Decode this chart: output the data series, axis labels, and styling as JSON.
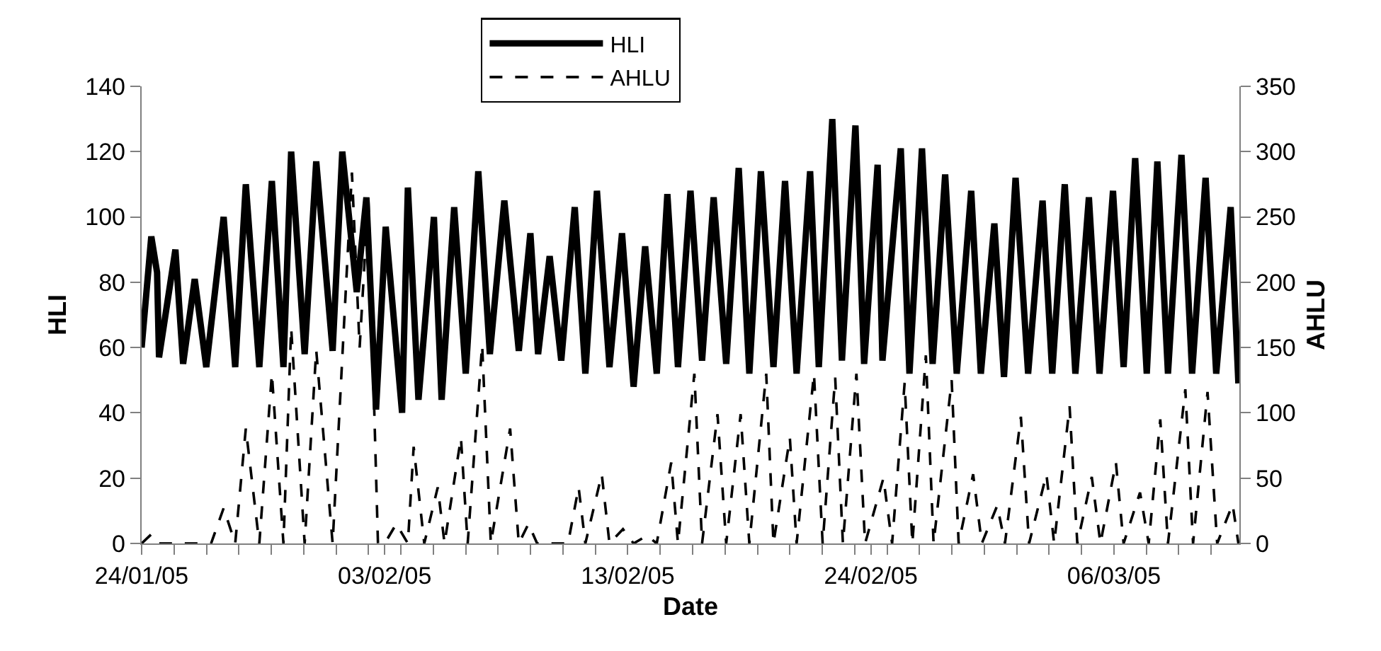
{
  "chart_data": {
    "type": "line",
    "xlabel": "Date",
    "ylabel": "HLI",
    "y2label": "AHLU",
    "legend": "top",
    "marker": "none",
    "xlim": [
      "--01-24T00:00",
      "--03-12T10:00"
    ],
    "xticks": [
      {
        "value": "--01-24T00:00",
        "label": "24/01/05"
      },
      {
        "value": "--01-25T09:36",
        "label": null
      },
      {
        "value": "--01-26T19:12",
        "label": null
      },
      {
        "value": "--01-28T04:48",
        "label": null
      },
      {
        "value": "--01-29T14:24",
        "label": null
      },
      {
        "value": "--01-31T00:00",
        "label": null
      },
      {
        "value": "--02-01T09:36",
        "label": null
      },
      {
        "value": "--02-02T19:12",
        "label": null
      },
      {
        "value": "--02-03T12:00",
        "label": "03/02/05"
      },
      {
        "value": "--02-04T04:48",
        "label": null
      },
      {
        "value": "--02-05T14:24",
        "label": null
      },
      {
        "value": "--02-07T00:00",
        "label": null
      },
      {
        "value": "--02-08T09:36",
        "label": null
      },
      {
        "value": "--02-09T19:12",
        "label": null
      },
      {
        "value": "--02-11T04:48",
        "label": null
      },
      {
        "value": "--02-12T14:24",
        "label": null
      },
      {
        "value": "--02-14T00:00",
        "label": "13/02/05"
      },
      {
        "value": "--02-15T09:36",
        "label": null
      },
      {
        "value": "--02-16T19:12",
        "label": null
      },
      {
        "value": "--02-18T04:48",
        "label": null
      },
      {
        "value": "--02-19T14:24",
        "label": null
      },
      {
        "value": "--02-21T00:00",
        "label": null
      },
      {
        "value": "--02-22T09:36",
        "label": null
      },
      {
        "value": "--02-23T19:12",
        "label": null
      },
      {
        "value": "--02-24T12:00",
        "label": "24/02/05"
      },
      {
        "value": "--02-25T04:48",
        "label": null
      },
      {
        "value": "--02-26T14:24",
        "label": null
      },
      {
        "value": "--02-28T00:00",
        "label": null
      },
      {
        "value": "--03-01T09:36",
        "label": null
      },
      {
        "value": "--03-02T19:12",
        "label": null
      },
      {
        "value": "--03-04T04:48",
        "label": null
      },
      {
        "value": "--03-05T14:24",
        "label": null
      },
      {
        "value": "--03-07T00:00",
        "label": "06/03/05"
      },
      {
        "value": "--03-08T09:36",
        "label": null
      },
      {
        "value": "--03-09T19:12",
        "label": null
      },
      {
        "value": "--03-11T04:48",
        "label": null
      }
    ],
    "ylim": [
      0,
      140
    ],
    "yticks": [
      0,
      20,
      40,
      60,
      80,
      100,
      120,
      140
    ],
    "y2lim": [
      0,
      350
    ],
    "y2ticks": [
      0,
      50,
      100,
      150,
      200,
      250,
      300,
      350
    ],
    "series": [
      {
        "name": "HLI",
        "color": "#000000",
        "line_style": "solid",
        "x": [
          "--01-24T00:00",
          "--01-24T10:00",
          "--01-24T16:00",
          "--01-24T18:00",
          "--01-25T11:00",
          "--01-25T19:00",
          "--01-26T07:00",
          "--01-26T19:00",
          "--01-27T13:00",
          "--01-28T01:00",
          "--01-28T12:00",
          "--01-29T02:00",
          "--01-29T15:00",
          "--01-30T03:00",
          "--01-30T11:00",
          "--01-31T01:00",
          "--01-31T13:00",
          "--02-01T06:00",
          "--02-01T16:00",
          "--02-02T07:00",
          "--02-02T17:00",
          "--02-03T03:00",
          "--02-03T13:00",
          "--02-04T06:00",
          "--02-04T12:00",
          "--02-04T23:00",
          "--02-05T15:00",
          "--02-05T23:00",
          "--02-06T12:00",
          "--02-07T00:00",
          "--02-07T13:00",
          "--02-08T01:00",
          "--02-08T16:00",
          "--02-09T07:00",
          "--02-09T19:00",
          "--02-10T03:00",
          "--02-10T15:00",
          "--02-11T03:00",
          "--02-11T17:00",
          "--02-12T04:00",
          "--02-12T16:00",
          "--02-13T05:00",
          "--02-13T18:00",
          "--02-14T06:00",
          "--02-14T18:00",
          "--02-15T06:00",
          "--02-15T17:00",
          "--02-16T04:00",
          "--02-16T17:00",
          "--02-17T05:00",
          "--02-17T17:00",
          "--02-18T06:00",
          "--02-18T19:00",
          "--02-19T06:00",
          "--02-19T18:00",
          "--02-20T07:00",
          "--02-20T19:00",
          "--02-21T07:00",
          "--02-21T21:00",
          "--02-22T06:00",
          "--02-22T20:00",
          "--02-23T06:00",
          "--02-23T20:00",
          "--02-24T05:00",
          "--02-24T19:00",
          "--02-25T00:00",
          "--02-25T19:00",
          "--02-26T04:00",
          "--02-26T17:00",
          "--02-27T04:00",
          "--02-27T17:00",
          "--02-28T05:00",
          "--02-28T20:00",
          "--03-01T06:00",
          "--03-01T20:00",
          "--03-02T06:00",
          "--03-02T18:00",
          "--03-03T07:00",
          "--03-03T22:00",
          "--03-04T08:00",
          "--03-04T21:00",
          "--03-05T08:00",
          "--03-05T22:00",
          "--03-06T09:00",
          "--03-06T23:00",
          "--03-07T10:00",
          "--03-07T22:00",
          "--03-08T10:00",
          "--03-08T21:00",
          "--03-09T08:00",
          "--03-09T22:00",
          "--03-10T09:00",
          "--03-10T23:00",
          "--03-11T10:00",
          "--03-12T01:00",
          "--03-12T09:00"
        ],
        "values": [
          60,
          94,
          83,
          57,
          90,
          55,
          81,
          54,
          100,
          54,
          110,
          54,
          111,
          54,
          120,
          58,
          117,
          59,
          120,
          77,
          106,
          41,
          97,
          40,
          109,
          44,
          100,
          44,
          103,
          52,
          114,
          58,
          105,
          59,
          95,
          58,
          88,
          56,
          103,
          52,
          108,
          54,
          95,
          48,
          91,
          52,
          107,
          54,
          108,
          56,
          106,
          55,
          115,
          52,
          114,
          54,
          111,
          52,
          114,
          54,
          130,
          56,
          128,
          55,
          116,
          56,
          121,
          52,
          121,
          55,
          113,
          52,
          108,
          52,
          98,
          51,
          112,
          52,
          105,
          52,
          110,
          52,
          106,
          52,
          108,
          54,
          118,
          52,
          117,
          52,
          119,
          52,
          112,
          52,
          103,
          49
        ]
      },
      {
        "name": "AHLU",
        "color": "#000000",
        "line_style": "dashed",
        "axis": "y2",
        "x": [
          "--01-24T00:00",
          "--01-24T10:00",
          "--01-24T18:00",
          "--01-27T00:00",
          "--01-27T13:00",
          "--01-28T01:00",
          "--01-28T12:00",
          "--01-29T02:00",
          "--01-29T15:00",
          "--01-30T03:00",
          "--01-30T11:00",
          "--01-31T01:00",
          "--01-31T13:00",
          "--02-01T06:00",
          "--02-02T02:00",
          "--02-02T10:00",
          "--02-02T19:00",
          "--02-03T05:00",
          "--02-03T12:00",
          "--02-04T00:00",
          "--02-04T12:00",
          "--02-04T18:00",
          "--02-05T05:00",
          "--02-05T19:00",
          "--02-06T02:00",
          "--02-06T19:00",
          "--02-07T02:00",
          "--02-07T17:00",
          "--02-08T02:00",
          "--02-08T22:00",
          "--02-09T07:00",
          "--02-09T17:00",
          "--02-10T02:00",
          "--02-11T10:00",
          "--02-11T21:00",
          "--02-12T04:00",
          "--02-12T21:00",
          "--02-13T05:00",
          "--02-13T19:00",
          "--02-14T06:00",
          "--02-14T20:00",
          "--02-15T06:00",
          "--02-15T21:00",
          "--02-16T04:00",
          "--02-16T21:00",
          "--02-17T05:00",
          "--02-17T21:00",
          "--02-18T06:00",
          "--02-18T21:00",
          "--02-19T06:00",
          "--02-19T23:30",
          "--02-20T07:00",
          "--02-21T00:00",
          "--02-21T07:00",
          "--02-22T01:00",
          "--02-22T10:00",
          "--02-22T23:00",
          "--02-23T07:00",
          "--02-23T21:00",
          "--02-24T06:00",
          "--02-25T01:00",
          "--02-25T10:00",
          "--02-25T23:00",
          "--02-26T07:00",
          "--02-26T21:00",
          "--02-27T05:00",
          "--02-27T23:45",
          "--02-28T07:00",
          "--02-28T22:00",
          "--03-01T07:00",
          "--03-01T23:00",
          "--03-02T07:00",
          "--03-02T23:30",
          "--03-03T08:00",
          "--03-04T02:00",
          "--03-04T10:00",
          "--03-05T02:00",
          "--03-05T10:00",
          "--03-06T01:00",
          "--03-06T10:00",
          "--03-07T02:00",
          "--03-07T10:00",
          "--03-08T03:00",
          "--03-08T12:00",
          "--03-09T00:00",
          "--03-09T08:00",
          "--03-10T02:00",
          "--03-10T10:00",
          "--03-11T01:00",
          "--03-11T11:00",
          "--03-12T03:00",
          "--03-12T09:00"
        ],
        "values": [
          0,
          7,
          0,
          0,
          27,
          0,
          88,
          0,
          130,
          0,
          165,
          0,
          148,
          0,
          284,
          150,
          265,
          0,
          0,
          15,
          0,
          74,
          0,
          43,
          0,
          81,
          0,
          152,
          0,
          88,
          0,
          15,
          0,
          0,
          43,
          0,
          53,
          0,
          11,
          0,
          6,
          0,
          62,
          0,
          130,
          0,
          99,
          0,
          99,
          0,
          130,
          0,
          81,
          0,
          130,
          0,
          127,
          0,
          130,
          0,
          50,
          0,
          123,
          0,
          144,
          0,
          125,
          0,
          53,
          0,
          29,
          0,
          97,
          0,
          53,
          0,
          105,
          0,
          51,
          0,
          62,
          0,
          39,
          0,
          95,
          0,
          118,
          0,
          116,
          0,
          30,
          0
        ]
      }
    ]
  }
}
